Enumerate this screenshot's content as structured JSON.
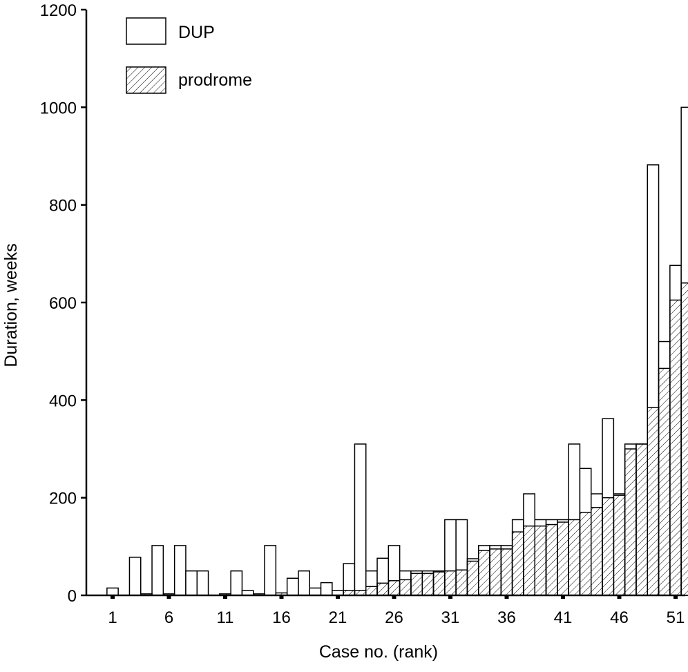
{
  "chart_data": {
    "type": "bar",
    "title": "",
    "xlabel": "Case no. (rank)",
    "ylabel": "Duration, weeks",
    "ylim": [
      0,
      1200
    ],
    "xlim": [
      0,
      52.5
    ],
    "yticks": [
      0,
      200,
      400,
      600,
      800,
      1000,
      1200
    ],
    "xticks": [
      1,
      6,
      11,
      16,
      21,
      26,
      31,
      36,
      41,
      46,
      51
    ],
    "xticks_text": [
      "1",
      "6",
      "11",
      "16",
      "21",
      "26",
      "31",
      "36",
      "41",
      "46",
      "51"
    ],
    "grid": false,
    "overlay": "prodrome drawn in front of DUP",
    "legend": {
      "position": "top-left",
      "entries": [
        {
          "label": "DUP",
          "pattern": "open"
        },
        {
          "label": "prodrome",
          "pattern": "hatched"
        }
      ]
    },
    "cases": [
      1,
      2,
      3,
      4,
      5,
      6,
      7,
      8,
      9,
      10,
      11,
      12,
      13,
      14,
      15,
      16,
      17,
      18,
      19,
      20,
      21,
      22,
      23,
      24,
      25,
      26,
      27,
      28,
      29,
      30,
      31,
      32,
      33,
      34,
      35,
      36,
      37,
      38,
      39,
      40,
      41,
      42,
      43,
      44,
      45,
      46,
      47,
      48,
      49,
      50,
      51,
      52
    ],
    "series": [
      {
        "name": "DUP",
        "values": [
          15,
          0,
          78,
          0,
          102,
          0,
          102,
          50,
          50,
          0,
          0,
          50,
          10,
          0,
          102,
          0,
          35,
          50,
          15,
          26,
          10,
          65,
          310,
          50,
          76,
          102,
          50,
          50,
          50,
          50,
          155,
          155,
          75,
          102,
          102,
          102,
          155,
          208,
          155,
          155,
          155,
          310,
          260,
          208,
          362,
          208,
          310,
          310,
          882,
          520,
          676,
          1000
        ]
      },
      {
        "name": "prodrome",
        "values": [
          0,
          0,
          0,
          3,
          0,
          3,
          0,
          0,
          0,
          0,
          3,
          0,
          0,
          3,
          0,
          5,
          0,
          0,
          0,
          0,
          0,
          10,
          10,
          18,
          25,
          30,
          32,
          45,
          45,
          48,
          50,
          52,
          70,
          92,
          95,
          95,
          130,
          142,
          142,
          145,
          150,
          155,
          170,
          180,
          200,
          205,
          300,
          310,
          385,
          465,
          605,
          640
        ]
      }
    ]
  }
}
